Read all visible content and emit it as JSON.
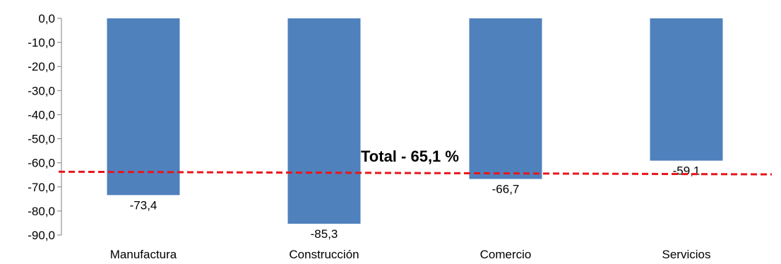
{
  "chart_data": {
    "type": "bar",
    "categories": [
      "Manufactura",
      "Construcción",
      "Comercio",
      "Servicios"
    ],
    "values": [
      -73.4,
      -85.3,
      -66.7,
      -59.1
    ],
    "value_labels": [
      "-73,4",
      "-85,3",
      "-66,7",
      "-59,1"
    ],
    "y_ticks": [
      0,
      -10,
      -20,
      -30,
      -40,
      -50,
      -60,
      -70,
      -80,
      -90
    ],
    "y_tick_labels": [
      "0,0",
      "-10,0",
      "-20,0",
      "-30,0",
      "-40,0",
      "-50,0",
      "-60,0",
      "-70,0",
      "-80,0",
      "-90,0"
    ],
    "ylim": [
      -90,
      0
    ],
    "grid": false,
    "bar_color": "#4f81bd",
    "reference_line": {
      "label": "Total - 65,1 %",
      "value_start": -63.7,
      "value_end": -64.8,
      "color": "#e8161c",
      "style": "dashed"
    }
  }
}
